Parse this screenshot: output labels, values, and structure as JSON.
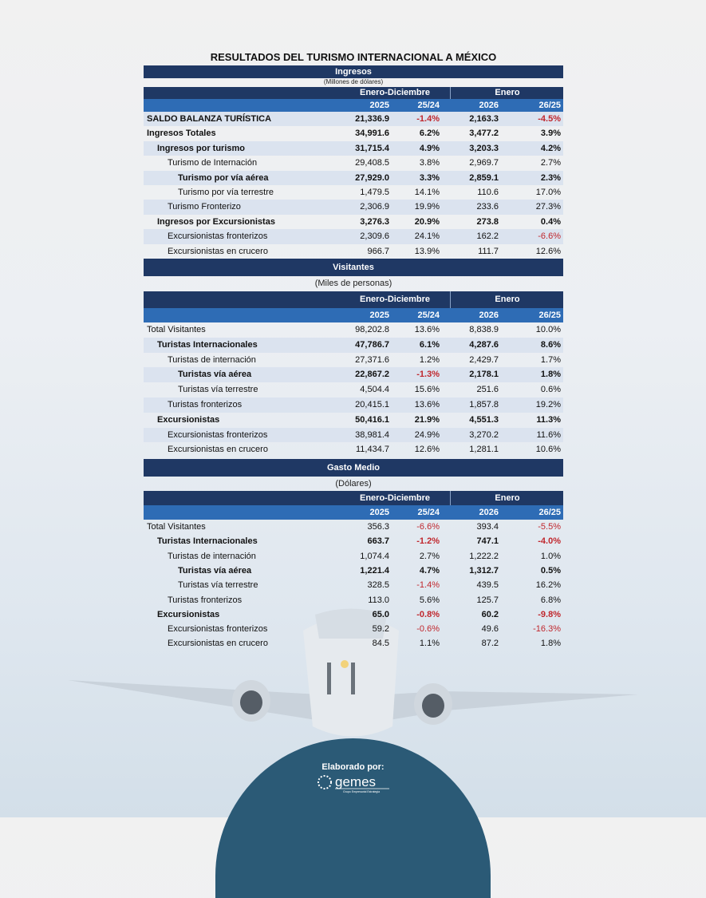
{
  "title": "RESULTADOS DEL TURISMO INTERNACIONAL A MÉXICO",
  "colors": {
    "dark_header": "#1f3864",
    "blue_header": "#2e6cb5",
    "negative": "#c0272d",
    "footer": "#2b5a76"
  },
  "sections": [
    {
      "name": "Ingresos",
      "unit": "(Millones de dólares)",
      "group1": "Enero-Diciembre",
      "group2": "Enero",
      "cols": [
        "2025",
        "25/24",
        "2026",
        "26/25"
      ],
      "rows": [
        {
          "label": "SALDO BALANZA TURÍSTICA",
          "level": 0,
          "bold": true,
          "values": [
            "21,336.9",
            "-1.4%",
            "2,163.3",
            "-4.5%"
          ]
        },
        {
          "label": "Ingresos Totales",
          "level": 0,
          "bold": true,
          "values": [
            "34,991.6",
            "6.2%",
            "3,477.2",
            "3.9%"
          ]
        },
        {
          "label": "Ingresos por turismo",
          "level": 1,
          "bold": true,
          "values": [
            "31,715.4",
            "4.9%",
            "3,203.3",
            "4.2%"
          ]
        },
        {
          "label": "Turismo de Internación",
          "level": 2,
          "bold": false,
          "values": [
            "29,408.5",
            "3.8%",
            "2,969.7",
            "2.7%"
          ]
        },
        {
          "label": "Turismo por vía aérea",
          "level": 3,
          "bold": true,
          "values": [
            "27,929.0",
            "3.3%",
            "2,859.1",
            "2.3%"
          ]
        },
        {
          "label": "Turismo por vía terrestre",
          "level": 3,
          "bold": false,
          "values": [
            "1,479.5",
            "14.1%",
            "110.6",
            "17.0%"
          ]
        },
        {
          "label": "Turismo Fronterizo",
          "level": 2,
          "bold": false,
          "values": [
            "2,306.9",
            "19.9%",
            "233.6",
            "27.3%"
          ]
        },
        {
          "label": "Ingresos por Excursionistas",
          "level": 1,
          "bold": true,
          "values": [
            "3,276.3",
            "20.9%",
            "273.8",
            "0.4%"
          ]
        },
        {
          "label": "Excursionistas fronterizos",
          "level": 2,
          "bold": false,
          "values": [
            "2,309.6",
            "24.1%",
            "162.2",
            "-6.6%"
          ]
        },
        {
          "label": "Excursionistas en crucero",
          "level": 2,
          "bold": false,
          "values": [
            "966.7",
            "13.9%",
            "111.7",
            "12.6%"
          ]
        }
      ]
    },
    {
      "name": "Visitantes",
      "unit": "(Miles de personas)",
      "group1": "Enero-Diciembre",
      "group2": "Enero",
      "cols": [
        "2025",
        "25/24",
        "2026",
        "26/25"
      ],
      "rows": [
        {
          "label": "Total Visitantes",
          "level": 0,
          "bold": false,
          "values": [
            "98,202.8",
            "13.6%",
            "8,838.9",
            "10.0%"
          ]
        },
        {
          "label": "Turistas Internacionales",
          "level": 1,
          "bold": true,
          "values": [
            "47,786.7",
            "6.1%",
            "4,287.6",
            "8.6%"
          ]
        },
        {
          "label": "Turistas de internación",
          "level": 2,
          "bold": false,
          "values": [
            "27,371.6",
            "1.2%",
            "2,429.7",
            "1.7%"
          ]
        },
        {
          "label": "Turistas vía aérea",
          "level": 3,
          "bold": true,
          "values": [
            "22,867.2",
            "-1.3%",
            "2,178.1",
            "1.8%"
          ]
        },
        {
          "label": "Turistas vía terrestre",
          "level": 3,
          "bold": false,
          "values": [
            "4,504.4",
            "15.6%",
            "251.6",
            "0.6%"
          ]
        },
        {
          "label": "Turistas fronterizos",
          "level": 2,
          "bold": false,
          "values": [
            "20,415.1",
            "13.6%",
            "1,857.8",
            "19.2%"
          ]
        },
        {
          "label": "Excursionistas",
          "level": 1,
          "bold": true,
          "values": [
            "50,416.1",
            "21.9%",
            "4,551.3",
            "11.3%"
          ]
        },
        {
          "label": "Excursionistas fronterizos",
          "level": 2,
          "bold": false,
          "values": [
            "38,981.4",
            "24.9%",
            "3,270.2",
            "11.6%"
          ]
        },
        {
          "label": "Excursionistas en crucero",
          "level": 2,
          "bold": false,
          "values": [
            "11,434.7",
            "12.6%",
            "1,281.1",
            "10.6%"
          ]
        }
      ]
    },
    {
      "name": "Gasto Medio",
      "unit": "(Dólares)",
      "group1": "Enero-Diciembre",
      "group2": "Enero",
      "cols": [
        "2025",
        "25/24",
        "2026",
        "26/25"
      ],
      "rows": [
        {
          "label": "Total Visitantes",
          "level": 0,
          "bold": false,
          "values": [
            "356.3",
            "-6.6%",
            "393.4",
            "-5.5%"
          ]
        },
        {
          "label": "Turistas Internacionales",
          "level": 1,
          "bold": true,
          "values": [
            "663.7",
            "-1.2%",
            "747.1",
            "-4.0%"
          ]
        },
        {
          "label": "Turistas de internación",
          "level": 2,
          "bold": false,
          "values": [
            "1,074.4",
            "2.7%",
            "1,222.2",
            "1.0%"
          ]
        },
        {
          "label": "Turistas vía aérea",
          "level": 3,
          "bold": true,
          "values": [
            "1,221.4",
            "4.7%",
            "1,312.7",
            "0.5%"
          ]
        },
        {
          "label": "Turistas vía terrestre",
          "level": 3,
          "bold": false,
          "values": [
            "328.5",
            "-1.4%",
            "439.5",
            "16.2%"
          ]
        },
        {
          "label": "Turistas fronterizos",
          "level": 2,
          "bold": false,
          "values": [
            "113.0",
            "5.6%",
            "125.7",
            "6.8%"
          ]
        },
        {
          "label": "Excursionistas",
          "level": 1,
          "bold": true,
          "values": [
            "65.0",
            "-0.8%",
            "60.2",
            "-9.8%"
          ]
        },
        {
          "label": "Excursionistas fronterizos",
          "level": 2,
          "bold": false,
          "values": [
            "59.2",
            "-0.6%",
            "49.6",
            "-16.3%"
          ]
        },
        {
          "label": "Excursionistas en crucero",
          "level": 2,
          "bold": false,
          "values": [
            "84.5",
            "1.1%",
            "87.2",
            "1.8%"
          ]
        }
      ]
    }
  ],
  "footer": {
    "label": "Elaborado por:",
    "logo_text": "gemes",
    "logo_tagline": "Grupo Empresarial Estrategia"
  }
}
